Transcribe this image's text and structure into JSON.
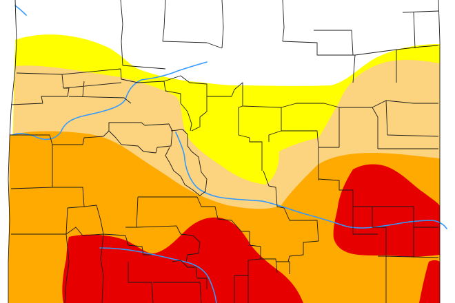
{
  "map": {
    "kind": "drought monitor style category map",
    "categories": [
      {
        "name": "none",
        "color": "#ffffff"
      },
      {
        "name": "abnormally-dry",
        "color": "#ffff00"
      },
      {
        "name": "moderate-drought",
        "color": "#fcd37f"
      },
      {
        "name": "severe-drought",
        "color": "#ffaa00"
      },
      {
        "name": "extreme-drought",
        "color": "#e60000"
      }
    ],
    "river_color": "#3399ff",
    "border_color": "#1a1a1a",
    "background": "#ffffff"
  }
}
